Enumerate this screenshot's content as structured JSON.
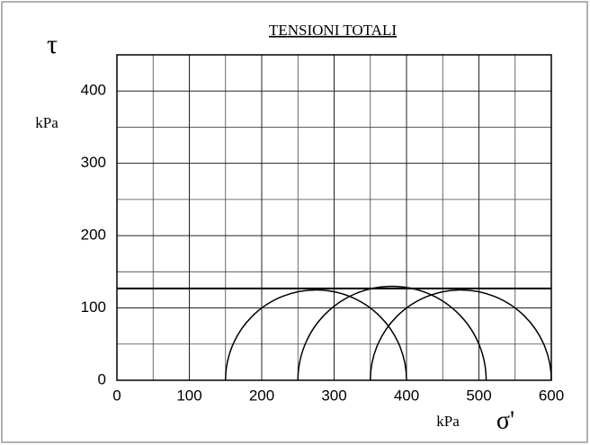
{
  "chart_data": {
    "type": "mohr",
    "title": "TENSIONI TOTALI",
    "y_symbol": "τ",
    "y_unit": "kPa",
    "x_unit": "kPa",
    "x_symbol": "σ'",
    "xlim": [
      0,
      600
    ],
    "ylim": [
      0,
      450
    ],
    "xticks": [
      0,
      100,
      200,
      300,
      400,
      500,
      600
    ],
    "yticks": [
      0,
      100,
      200,
      300,
      400
    ],
    "xgrid": [
      50,
      150,
      250,
      350,
      450,
      550
    ],
    "ygrid": [
      50,
      150,
      250,
      350,
      450
    ],
    "grid": true,
    "circles": [
      {
        "sigma3": 150,
        "sigma1": 400
      },
      {
        "sigma3": 250,
        "sigma1": 510
      },
      {
        "sigma3": 350,
        "sigma1": 600
      }
    ],
    "envelope_tau": 127,
    "color": "#000000"
  }
}
